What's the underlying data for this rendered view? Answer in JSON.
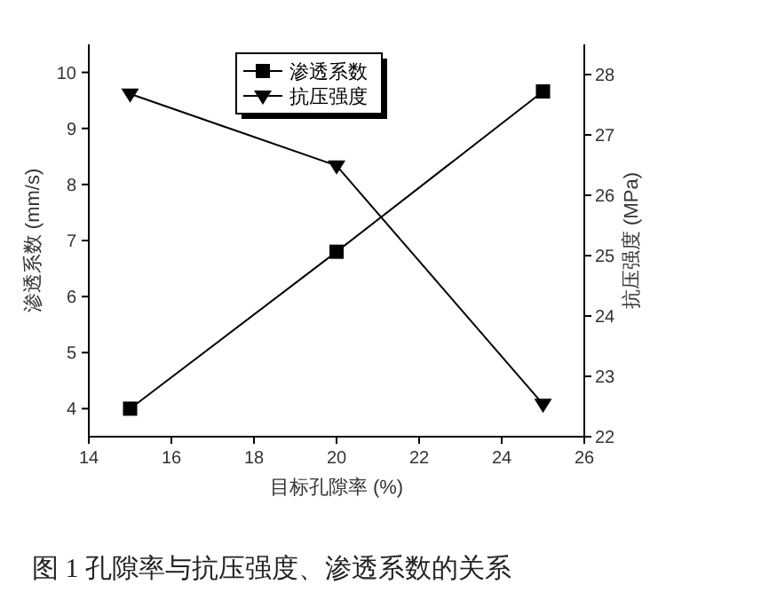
{
  "chart_data": {
    "type": "line",
    "xlabel": "目标孔隙率 (%)",
    "ylabel": "渗透系数 (mm/s)",
    "y2label": "抗压强度 (MPa)",
    "x": [
      15,
      20,
      25
    ],
    "series": [
      {
        "name": "渗透系数",
        "color": "#000000",
        "values": [
          4.0,
          6.8,
          9.66
        ],
        "marker": "square"
      },
      {
        "name": "抗压强度",
        "color": "#000000",
        "values": [
          27.68,
          26.49,
          22.54
        ],
        "marker": "triangle",
        "axis": "y2"
      }
    ],
    "xlim": [
      14,
      26
    ],
    "xticks": [
      14,
      16,
      18,
      20,
      22,
      24,
      26
    ],
    "ylim": [
      3.5,
      10.5
    ],
    "yticks": [
      4,
      5,
      6,
      7,
      8,
      9,
      10
    ],
    "y2lim": [
      22,
      28.5
    ],
    "y2ticks": [
      22,
      23,
      24,
      25,
      26,
      27,
      28
    ],
    "legend": "top",
    "grid": false,
    "line_style": "solid",
    "annotations": [
      "图 1 孔隙率与抗压强度、渗透系数的关系"
    ]
  }
}
